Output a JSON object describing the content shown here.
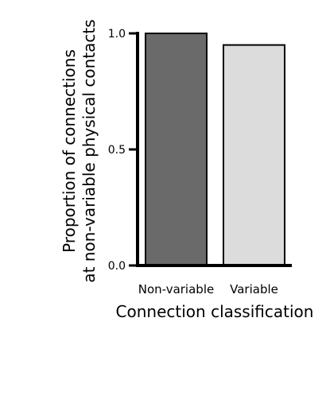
{
  "chart_data": {
    "type": "bar",
    "categories": [
      "Non-variable",
      "Variable"
    ],
    "values": [
      1.0,
      0.95
    ],
    "bar_colors": [
      "#6a6a6a",
      "#dcdcdc"
    ],
    "bar_edge_color": "#000000",
    "title": "",
    "xlabel": "Connection classification",
    "ylabel_lines": [
      "Proportion of connections",
      "at non-variable physical contacts"
    ],
    "ylim": [
      0,
      1
    ],
    "yticks": [
      0.0,
      0.5,
      1.0
    ],
    "ytick_labels": [
      "0.0",
      "0.5",
      "1.0"
    ],
    "grid": false,
    "legend": "none"
  }
}
